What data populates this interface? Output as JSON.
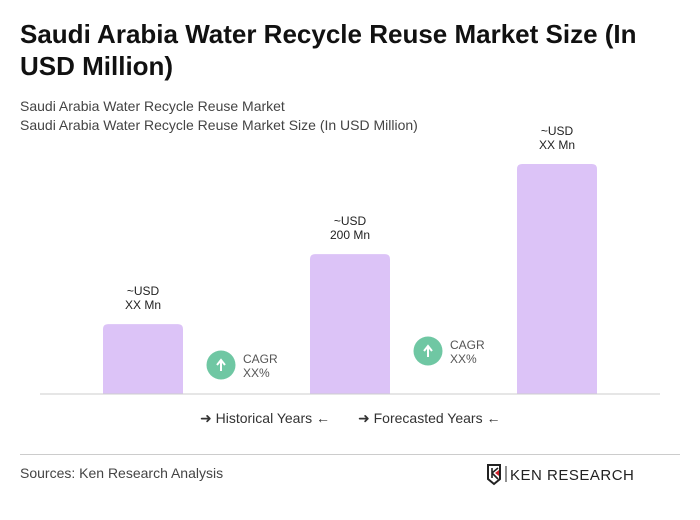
{
  "title": "Saudi Arabia Water Recycle Reuse Market Size (In USD Million)",
  "subtitle1": "Saudi Arabia Water Recycle Reuse Market",
  "subtitle2": "Saudi Arabia Water Recycle Reuse Market Size (In USD Million)",
  "chart_data": {
    "type": "bar",
    "categories": [
      "",
      "",
      ""
    ],
    "values": [
      100,
      200,
      329
    ],
    "data_labels": [
      [
        "~USD",
        "XX Mn"
      ],
      [
        "~USD",
        "200 Mn"
      ],
      [
        "~USD",
        "XX Mn"
      ]
    ],
    "bar_color": "#dcc3f7",
    "cagr": [
      {
        "line1": "CAGR",
        "line2": "XX%"
      },
      {
        "line1": "CAGR",
        "line2": "XX%"
      }
    ],
    "cagr_color": "#6fc7a3",
    "ylim": [
      0,
      329
    ]
  },
  "legend": {
    "historical": "Historical Years",
    "forecasted": "Forecasted Years"
  },
  "sources": "Sources: Ken Research Analysis",
  "logo_text": "KEN RESEARCH"
}
